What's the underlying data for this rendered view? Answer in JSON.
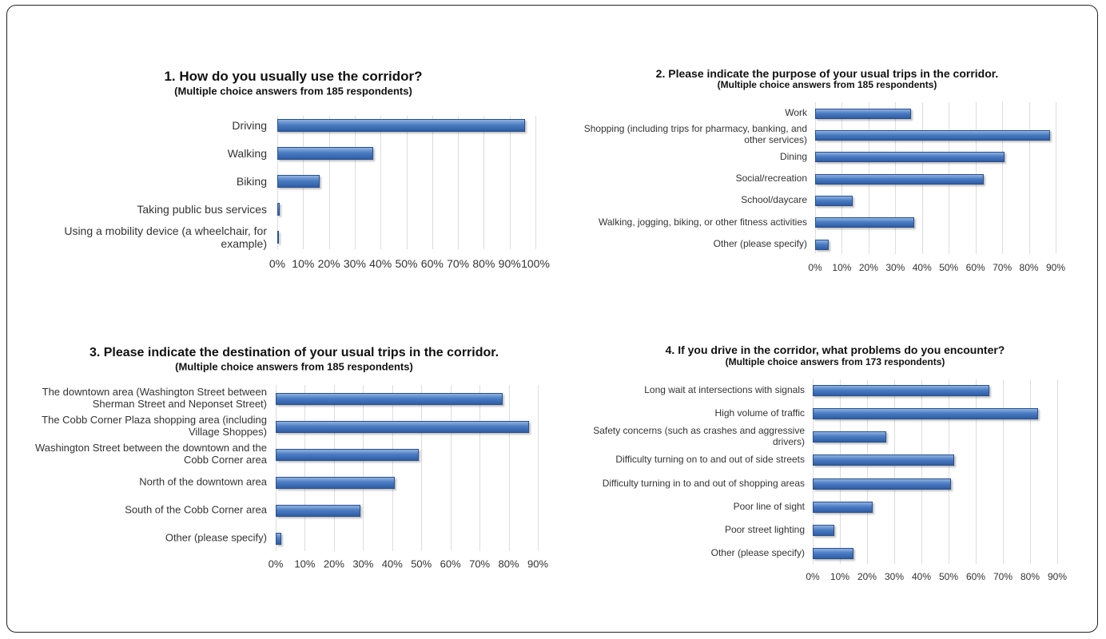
{
  "chart_data": [
    {
      "type": "bar",
      "orientation": "horizontal",
      "title": "1. How do you usually use the corridor?",
      "subtitle": "(Multiple choice answers from 185 respondents)",
      "categories": [
        "Driving",
        "Walking",
        "Biking",
        "Taking public bus services",
        "Using a mobility device (a wheelchair, for example)"
      ],
      "values": [
        96,
        37,
        16.5,
        1,
        0.3
      ],
      "color": "#4b7cc2",
      "xlim": [
        0,
        100
      ],
      "xticks": [
        {
          "value": 0,
          "label": "0%"
        },
        {
          "value": 10,
          "label": "10%"
        },
        {
          "value": 20,
          "label": "20%"
        },
        {
          "value": 30,
          "label": "30%"
        },
        {
          "value": 40,
          "label": "40%"
        },
        {
          "value": 50,
          "label": "50%"
        },
        {
          "value": 60,
          "label": "60%"
        },
        {
          "value": 70,
          "label": "70%"
        },
        {
          "value": 80,
          "label": "80%"
        },
        {
          "value": 90,
          "label": "90%"
        },
        {
          "value": 100,
          "label": "100%"
        }
      ],
      "grid": true
    },
    {
      "type": "bar",
      "orientation": "horizontal",
      "title": "2. Please indicate the purpose of your usual trips in the corridor.",
      "subtitle": "(Multiple choice answers from 185 respondents)",
      "categories": [
        "Work",
        "Shopping (including trips for pharmacy, banking, and other services)",
        "Dining",
        "Social/recreation",
        "School/daycare",
        "Walking, jogging, biking, or other fitness activities",
        "Other (please specify)"
      ],
      "values": [
        36,
        88,
        71,
        63,
        14,
        37,
        5
      ],
      "color": "#4b7cc2",
      "xlim": [
        0,
        90
      ],
      "xticks": [
        {
          "value": 0,
          "label": "0%"
        },
        {
          "value": 10,
          "label": "10%"
        },
        {
          "value": 20,
          "label": "20%"
        },
        {
          "value": 30,
          "label": "30%"
        },
        {
          "value": 40,
          "label": "40%"
        },
        {
          "value": 50,
          "label": "50%"
        },
        {
          "value": 60,
          "label": "60%"
        },
        {
          "value": 70,
          "label": "70%"
        },
        {
          "value": 80,
          "label": "80%"
        },
        {
          "value": 90,
          "label": "90%"
        }
      ],
      "grid": true
    },
    {
      "type": "bar",
      "orientation": "horizontal",
      "title": "3. Please indicate the destination of your usual trips in the corridor.",
      "subtitle": "(Multiple choice answers from 185 respondents)",
      "categories": [
        "The downtown area (Washington Street between Sherman Street and Neponset Street)",
        "The Cobb Corner Plaza shopping area (including Village Shoppes)",
        "Washington Street between the downtown and the Cobb Corner area",
        "North of the downtown area",
        "South of the Cobb Corner area",
        "Other (please specify)"
      ],
      "values": [
        78,
        87,
        49,
        41,
        29,
        2
      ],
      "color": "#4b7cc2",
      "xlim": [
        0,
        90
      ],
      "xticks": [
        {
          "value": 0,
          "label": "0%"
        },
        {
          "value": 10,
          "label": "10%"
        },
        {
          "value": 20,
          "label": "20%"
        },
        {
          "value": 30,
          "label": "30%"
        },
        {
          "value": 40,
          "label": "40%"
        },
        {
          "value": 50,
          "label": "50%"
        },
        {
          "value": 60,
          "label": "60%"
        },
        {
          "value": 70,
          "label": "70%"
        },
        {
          "value": 80,
          "label": "80%"
        },
        {
          "value": 90,
          "label": "90%"
        }
      ],
      "grid": true
    },
    {
      "type": "bar",
      "orientation": "horizontal",
      "title": "4. If you drive in the corridor, what problems do you encounter?",
      "subtitle": "(Multiple choice answers from 173 respondents)",
      "categories": [
        "Long wait at intersections with signals",
        "High volume of traffic",
        "Safety concerns (such as crashes and aggressive drivers)",
        "Difficulty turning on to and out of side streets",
        "Difficulty turning in to and out of shopping areas",
        "Poor line of sight",
        "Poor street lighting",
        "Other (please specify)"
      ],
      "values": [
        65,
        83,
        27,
        52,
        51,
        22,
        8,
        15
      ],
      "color": "#4b7cc2",
      "xlim": [
        0,
        90
      ],
      "xticks": [
        {
          "value": 0,
          "label": "0%"
        },
        {
          "value": 10,
          "label": "10%"
        },
        {
          "value": 20,
          "label": "20%"
        },
        {
          "value": 30,
          "label": "30%"
        },
        {
          "value": 40,
          "label": "40%"
        },
        {
          "value": 50,
          "label": "50%"
        },
        {
          "value": 60,
          "label": "60%"
        },
        {
          "value": 70,
          "label": "70%"
        },
        {
          "value": 80,
          "label": "80%"
        },
        {
          "value": 90,
          "label": "90%"
        }
      ],
      "grid": true
    }
  ]
}
